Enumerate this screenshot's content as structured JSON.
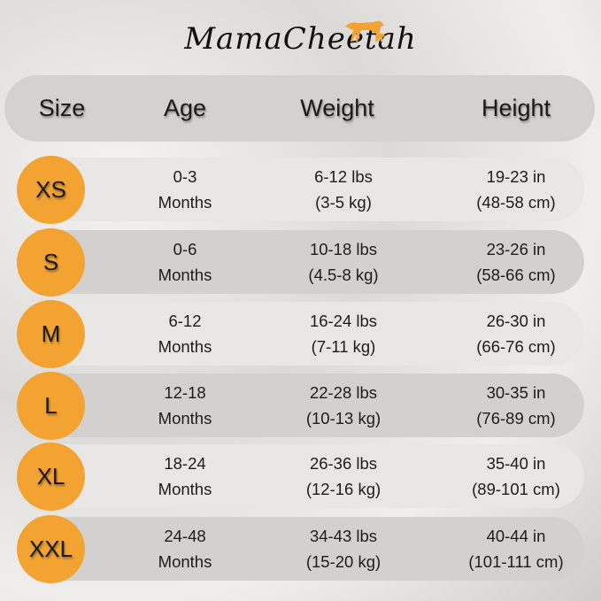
{
  "brand": {
    "name": "MamaCheetah",
    "logo_color": "#f3a332"
  },
  "header": {
    "size": "Size",
    "age": "Age",
    "weight": "Weight",
    "height": "Height"
  },
  "colors": {
    "badge": "#f3a332",
    "row_light": "#e9e7e5",
    "row_dark": "#d3d1cf",
    "header_bg": "#d4d2d0"
  },
  "rows": [
    {
      "size": "XS",
      "age": [
        "0-3",
        "Months"
      ],
      "weight": [
        "6-12 lbs",
        "(3-5 kg)"
      ],
      "height": [
        "19-23 in",
        "(48-58 cm)"
      ]
    },
    {
      "size": "S",
      "age": [
        "0-6",
        "Months"
      ],
      "weight": [
        "10-18 lbs",
        "(4.5-8 kg)"
      ],
      "height": [
        "23-26 in",
        "(58-66 cm)"
      ]
    },
    {
      "size": "M",
      "age": [
        "6-12",
        "Months"
      ],
      "weight": [
        "16-24 lbs",
        "(7-11 kg)"
      ],
      "height": [
        "26-30 in",
        "(66-76 cm)"
      ]
    },
    {
      "size": "L",
      "age": [
        "12-18",
        "Months"
      ],
      "weight": [
        "22-28 lbs",
        "(10-13 kg)"
      ],
      "height": [
        "30-35 in",
        "(76-89 cm)"
      ]
    },
    {
      "size": "XL",
      "age": [
        "18-24",
        "Months"
      ],
      "weight": [
        "26-36 lbs",
        "(12-16 kg)"
      ],
      "height": [
        "35-40 in",
        "(89-101 cm)"
      ]
    },
    {
      "size": "XXL",
      "age": [
        "24-48",
        "Months"
      ],
      "weight": [
        "34-43 lbs",
        "(15-20 kg)"
      ],
      "height": [
        "40-44 in",
        "(101-111 cm)"
      ]
    }
  ]
}
